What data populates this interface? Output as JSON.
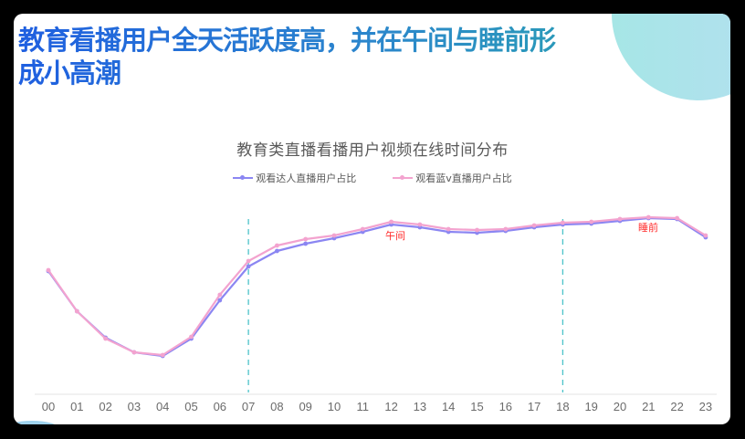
{
  "slide": {
    "headline": "教育看播用户全天活跃度高，并在午间与睡前形成小高潮",
    "headline_line1": "教育看播用户全天活跃度高，并在午间与睡前形",
    "headline_line2": "成小高潮"
  },
  "chart_data": {
    "type": "line",
    "title": "教育类直播看播用户视频在线时间分布",
    "xlabel": "",
    "ylabel": "",
    "ylim": [
      0,
      120
    ],
    "grid": false,
    "legend_position": "top",
    "categories": [
      "00",
      "01",
      "02",
      "03",
      "04",
      "05",
      "06",
      "07",
      "08",
      "09",
      "10",
      "11",
      "12",
      "13",
      "14",
      "15",
      "16",
      "17",
      "18",
      "19",
      "20",
      "21",
      "22",
      "23"
    ],
    "series": [
      {
        "name": "观看达人直播用户占比",
        "color": "#8b86f2",
        "values": [
          67.5,
          45.5,
          31,
          23,
          21,
          30.5,
          51.5,
          70,
          78.5,
          82.5,
          85.5,
          89,
          93,
          91.5,
          89,
          88.5,
          89.5,
          91.5,
          93,
          93.5,
          95,
          96.5,
          96,
          86
        ]
      },
      {
        "name": "观看蓝v直播用户占比",
        "color": "#f3a3cf",
        "values": [
          68,
          45.5,
          30.5,
          23,
          21.5,
          31.5,
          54.5,
          73,
          81.5,
          85,
          87,
          90.5,
          94.5,
          93,
          90.5,
          90,
          90.5,
          92.5,
          94,
          94.5,
          96,
          97,
          96.5,
          87
        ]
      }
    ],
    "reference_lines": [
      {
        "x": "07",
        "style": "dashed",
        "color": "#4cc3c9"
      },
      {
        "x": "18",
        "style": "dashed",
        "color": "#4cc3c9"
      }
    ],
    "annotations": [
      {
        "text": "午间",
        "x": "12",
        "color": "#ff2a2a"
      },
      {
        "text": "睡前",
        "x": "21",
        "color": "#ff2a2a"
      }
    ]
  }
}
